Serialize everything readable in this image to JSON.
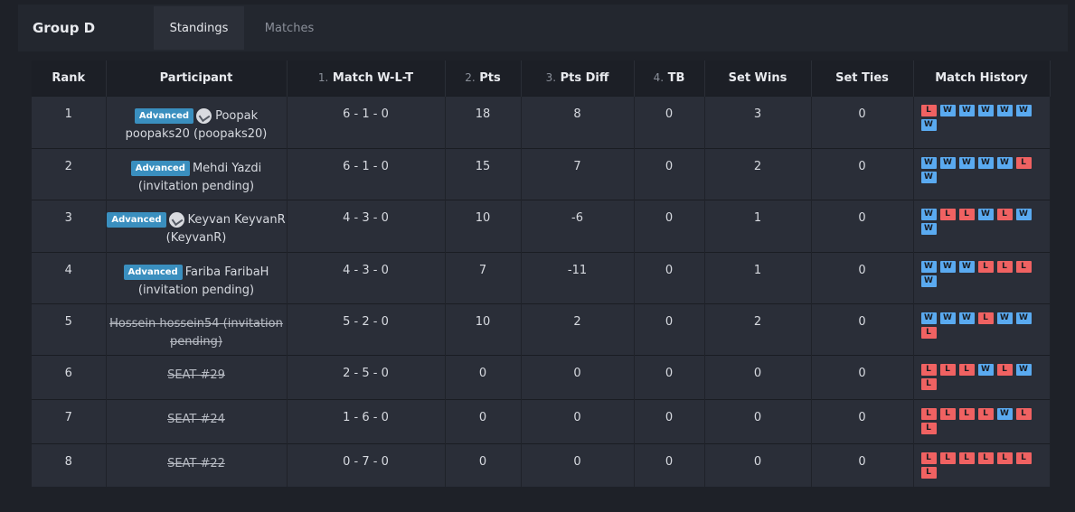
{
  "header": {
    "group_title": "Group D",
    "tabs": [
      {
        "label": "Standings",
        "active": true
      },
      {
        "label": "Matches",
        "active": false
      }
    ]
  },
  "table": {
    "columns": {
      "rank": "Rank",
      "participant": "Participant",
      "match_wlt_num": "1.",
      "match_wlt": "Match W-L-T",
      "pts_num": "2.",
      "pts": "Pts",
      "pts_diff_num": "3.",
      "pts_diff": "Pts Diff",
      "tb_num": "4.",
      "tb": "TB",
      "set_wins": "Set Wins",
      "set_ties": "Set Ties",
      "history": "Match History"
    },
    "rows": [
      {
        "rank": "1",
        "badge": "Advanced",
        "icon": "check-circle-icon",
        "name": "Poopak",
        "name2": "poopaks20 (poopaks20)",
        "wlt": "6 - 1 - 0",
        "pts": "18",
        "diff": "8",
        "tb": "0",
        "set_wins": "3",
        "set_ties": "0",
        "history": [
          "L",
          "W",
          "W",
          "W",
          "W",
          "W",
          "W"
        ]
      },
      {
        "rank": "2",
        "badge": "Advanced",
        "icon": "",
        "name": "Mehdi Yazdi",
        "name2": "(invitation pending)",
        "wlt": "6 - 1 - 0",
        "pts": "15",
        "diff": "7",
        "tb": "0",
        "set_wins": "2",
        "set_ties": "0",
        "history": [
          "W",
          "W",
          "W",
          "W",
          "W",
          "L",
          "W"
        ]
      },
      {
        "rank": "3",
        "badge": "Advanced",
        "icon": "check-circle-icon",
        "name": "Keyvan KeyvanR",
        "name2": "(KeyvanR)",
        "wlt": "4 - 3 - 0",
        "pts": "10",
        "diff": "-6",
        "tb": "0",
        "set_wins": "1",
        "set_ties": "0",
        "history": [
          "W",
          "L",
          "L",
          "W",
          "L",
          "W",
          "W"
        ]
      },
      {
        "rank": "4",
        "badge": "Advanced",
        "icon": "",
        "name": "Fariba FaribaH",
        "name2": "(invitation pending)",
        "wlt": "4 - 3 - 0",
        "pts": "7",
        "diff": "-11",
        "tb": "0",
        "set_wins": "1",
        "set_ties": "0",
        "history": [
          "W",
          "W",
          "W",
          "L",
          "L",
          "L",
          "W"
        ]
      },
      {
        "rank": "5",
        "struck_name": "Hossein hossein54 (invitation pending)",
        "wlt": "5 - 2 - 0",
        "pts": "10",
        "diff": "2",
        "tb": "0",
        "set_wins": "2",
        "set_ties": "0",
        "history": [
          "W",
          "W",
          "W",
          "L",
          "W",
          "W",
          "L"
        ]
      },
      {
        "rank": "6",
        "struck_name": "SEAT #29",
        "wlt": "2 - 5 - 0",
        "pts": "0",
        "diff": "0",
        "tb": "0",
        "set_wins": "0",
        "set_ties": "0",
        "history": [
          "L",
          "L",
          "L",
          "W",
          "L",
          "W",
          "L"
        ]
      },
      {
        "rank": "7",
        "struck_name": "SEAT #24",
        "wlt": "1 - 6 - 0",
        "pts": "0",
        "diff": "0",
        "tb": "0",
        "set_wins": "0",
        "set_ties": "0",
        "history": [
          "L",
          "L",
          "L",
          "L",
          "W",
          "L",
          "L"
        ]
      },
      {
        "rank": "8",
        "struck_name": "SEAT #22",
        "wlt": "0 - 7 - 0",
        "pts": "0",
        "diff": "0",
        "tb": "0",
        "set_wins": "0",
        "set_ties": "0",
        "history": [
          "L",
          "L",
          "L",
          "L",
          "L",
          "L",
          "L"
        ]
      }
    ]
  },
  "colors": {
    "win": "#5aaaf0",
    "loss": "#f06262",
    "badge": "#3a8fbf",
    "background": "#1e2128"
  }
}
